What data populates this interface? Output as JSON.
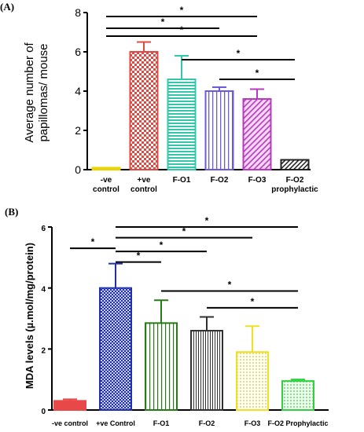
{
  "chart_data": [
    {
      "panel_label": "(A)",
      "type": "bar",
      "ylabel_lines": [
        "Average number of",
        "papillomas/ mouse"
      ],
      "ylim": [
        0,
        8
      ],
      "yticks": [
        0,
        2,
        4,
        6,
        8
      ],
      "categories": [
        [
          "-ve",
          "control"
        ],
        [
          "+ve",
          "control"
        ],
        [
          "F-O1"
        ],
        [
          "F-O2"
        ],
        [
          "F-O3"
        ],
        [
          "F-O2",
          "prophylactic"
        ]
      ],
      "values": [
        0.1,
        6.0,
        4.6,
        4.0,
        3.6,
        0.5
      ],
      "errors": [
        0,
        0.5,
        1.2,
        0.2,
        0.5,
        0
      ],
      "bar_colors": [
        "#e8d400",
        "#e04840",
        "#30c8a8",
        "#6a5cd8",
        "#b838c0",
        "#222222"
      ],
      "bar_patterns": [
        "solid",
        "checker",
        "hlines",
        "vlines",
        "diag",
        "diag-dark"
      ],
      "significance": [
        {
          "from": 0,
          "to": 4,
          "y": 7.8,
          "label": "*"
        },
        {
          "from": 0,
          "to": 3,
          "y": 7.2,
          "label": "*"
        },
        {
          "from": 0,
          "to": 4,
          "y": 6.8,
          "label": "*"
        },
        {
          "from": 2,
          "to": 5,
          "y": 5.6,
          "label": "*"
        },
        {
          "from": 3,
          "to": 5,
          "y": 4.6,
          "label": "*"
        }
      ]
    },
    {
      "panel_label": "(B)",
      "type": "bar",
      "ylabel": "MDA levels (µ.mol/mg/protein)",
      "ylim": [
        0,
        6
      ],
      "yticks": [
        0,
        2,
        4,
        6
      ],
      "categories": [
        "-ve control",
        "+ve Control",
        "F-O1",
        "F-O2",
        "F-O3",
        "F-O2 Prophylactic"
      ],
      "values": [
        0.3,
        4.0,
        2.85,
        2.6,
        1.9,
        0.95
      ],
      "errors": [
        0.05,
        0.8,
        0.75,
        0.45,
        0.85,
        0.05
      ],
      "bar_colors": [
        "#e84848",
        "#2030a8",
        "#287a18",
        "#303030",
        "#f0e020",
        "#30d040"
      ],
      "bar_patterns": [
        "solid",
        "checker",
        "vlines",
        "vlines",
        "dots",
        "dots"
      ],
      "significance": [
        {
          "from": 0,
          "to": 1,
          "y": 5.3,
          "label": "*"
        },
        {
          "from": 1,
          "to": 5,
          "y": 6.0,
          "label": "*"
        },
        {
          "from": 1,
          "to": 4,
          "y": 5.65,
          "label": "*"
        },
        {
          "from": 1,
          "to": 3,
          "y": 5.2,
          "label": "*"
        },
        {
          "from": 1,
          "to": 2,
          "y": 4.85,
          "label": "*"
        },
        {
          "from": 2,
          "to": 5,
          "y": 3.9,
          "label": "*"
        },
        {
          "from": 3,
          "to": 5,
          "y": 3.35,
          "label": "*"
        }
      ]
    }
  ]
}
